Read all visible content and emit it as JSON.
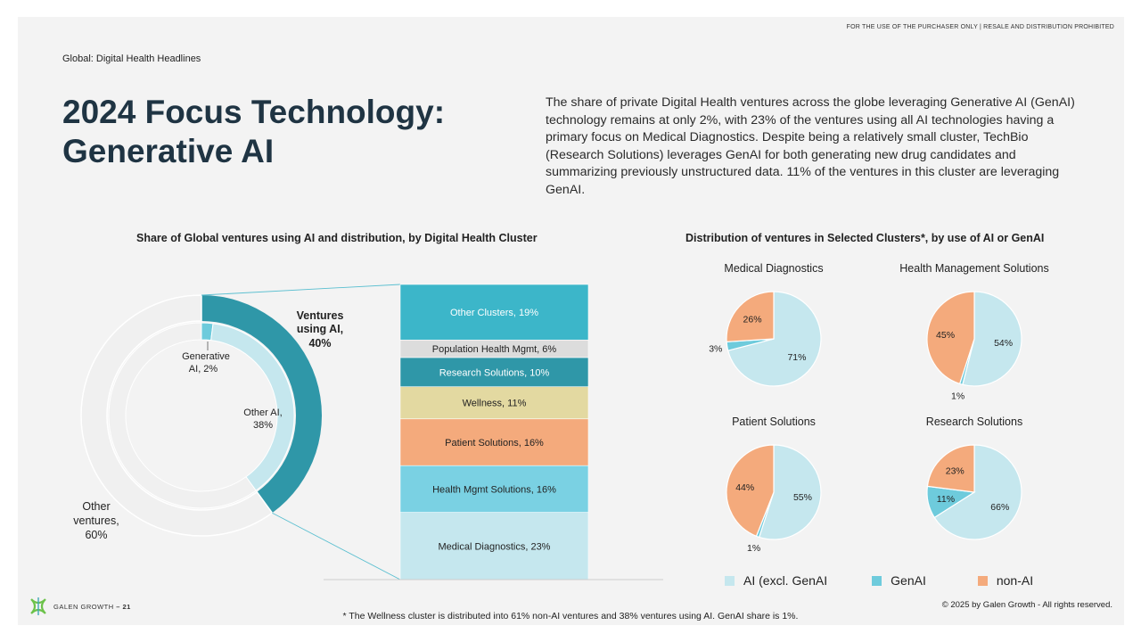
{
  "header": {
    "disclaimer": "FOR THE USE OF THE PURCHASER ONLY | RESALE AND DISTRIBUTION PROHIBITED",
    "breadcrumb": "Global: Digital Health Headlines",
    "title_line1": "2024 Focus Technology:",
    "title_line2": "Generative AI",
    "intro": "The share of private Digital Health ventures across the globe leveraging Generative AI (GenAI) technology remains at only 2%, with 23% of the ventures using all AI technologies having a primary focus on Medical Diagnostics. Despite being a relatively small cluster, TechBio (Research Solutions) leverages GenAI for both generating new drug candidates and summarizing previously unstructured data. 11% of the ventures in this cluster are leveraging GenAI."
  },
  "footer": {
    "brand": "GALEN GROWTH",
    "page": "21",
    "copyright": "© 2025 by Galen Growth  - All rights reserved.",
    "footnote": "* The Wellness cluster is distributed into 61% non-AI ventures and 38% ventures using AI. GenAI share is 1%."
  },
  "chart_data": [
    {
      "type": "pie",
      "title": "Share of Global ventures using AI and distribution, by Digital Health Cluster",
      "outer_ring": [
        {
          "label": "Ventures using AI, 40%",
          "value": 40,
          "color": "#2f97a8"
        },
        {
          "label": "Other ventures, 60%",
          "value": 60,
          "color": "#f0f0f0"
        }
      ],
      "inner_ring": [
        {
          "label": "Generative AI, 2%",
          "value": 2,
          "color": "#6ecbdc"
        },
        {
          "label": "Other AI, 38%",
          "value": 38,
          "color": "#c5e7ee"
        },
        {
          "label": "",
          "value": 60,
          "color": "#f0f0f0"
        }
      ],
      "stacked_bar": [
        {
          "label": "Medical Diagnostics, 23%",
          "value": 23,
          "color": "#c5e7ee",
          "text_color": "#222"
        },
        {
          "label": "Health Mgmt Solutions, 16%",
          "value": 16,
          "color": "#7ad1e3",
          "text_color": "#222"
        },
        {
          "label": "Patient Solutions, 16%",
          "value": 16,
          "color": "#f4aa7c",
          "text_color": "#222"
        },
        {
          "label": "Wellness, 11%",
          "value": 11,
          "color": "#e3d9a1",
          "text_color": "#222"
        },
        {
          "label": "Research Solutions, 10%",
          "value": 10,
          "color": "#2f97a8",
          "text_color": "#ffffff"
        },
        {
          "label": "Population Health Mgmt, 6%",
          "value": 6,
          "color": "#dcdcdc",
          "text_color": "#222"
        },
        {
          "label": "Other Clusters, 19%",
          "value": 19,
          "color": "#3cb6c9",
          "text_color": "#ffffff"
        }
      ]
    },
    {
      "type": "pie",
      "title": "Distribution of ventures in Selected Clusters*, by use of AI or GenAI",
      "series_names": [
        "AI (excl. GenAI",
        "GenAI",
        "non-AI"
      ],
      "colors": {
        "AI (excl. GenAI": "#c5e7ee",
        "GenAI": "#6ecbdc",
        "non-AI": "#f4aa7c"
      },
      "pies": [
        {
          "name": "Medical Diagnostics",
          "values": [
            71,
            3,
            26
          ],
          "labels": [
            "71%",
            "3%",
            "26%"
          ]
        },
        {
          "name": "Health Management Solutions",
          "values": [
            54,
            1,
            45
          ],
          "labels": [
            "54%",
            "1%",
            "45%"
          ]
        },
        {
          "name": "Patient Solutions",
          "values": [
            55,
            1,
            44
          ],
          "labels": [
            "55%",
            "1%",
            "44%"
          ]
        },
        {
          "name": "Research Solutions",
          "values": [
            66,
            11,
            23
          ],
          "labels": [
            "66%",
            "11%",
            "23%"
          ]
        }
      ]
    }
  ]
}
